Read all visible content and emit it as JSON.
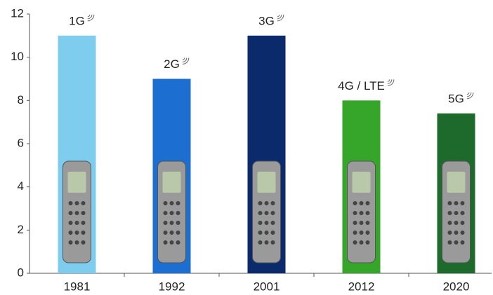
{
  "chart_data": {
    "type": "bar",
    "categories": [
      "1981",
      "1992",
      "2001",
      "2012",
      "2020"
    ],
    "values": [
      11,
      9,
      11,
      8,
      7.4
    ],
    "labels": [
      "1G",
      "2G",
      "3G",
      "4G / LTE",
      "5G"
    ],
    "colors": [
      "#7fcdee",
      "#1c6fd1",
      "#0b2a6c",
      "#35a62a",
      "#1d6a2c"
    ],
    "ylim": [
      0,
      12
    ],
    "yticks": [
      0,
      2,
      4,
      6,
      8,
      10,
      12
    ],
    "grid": false
  }
}
